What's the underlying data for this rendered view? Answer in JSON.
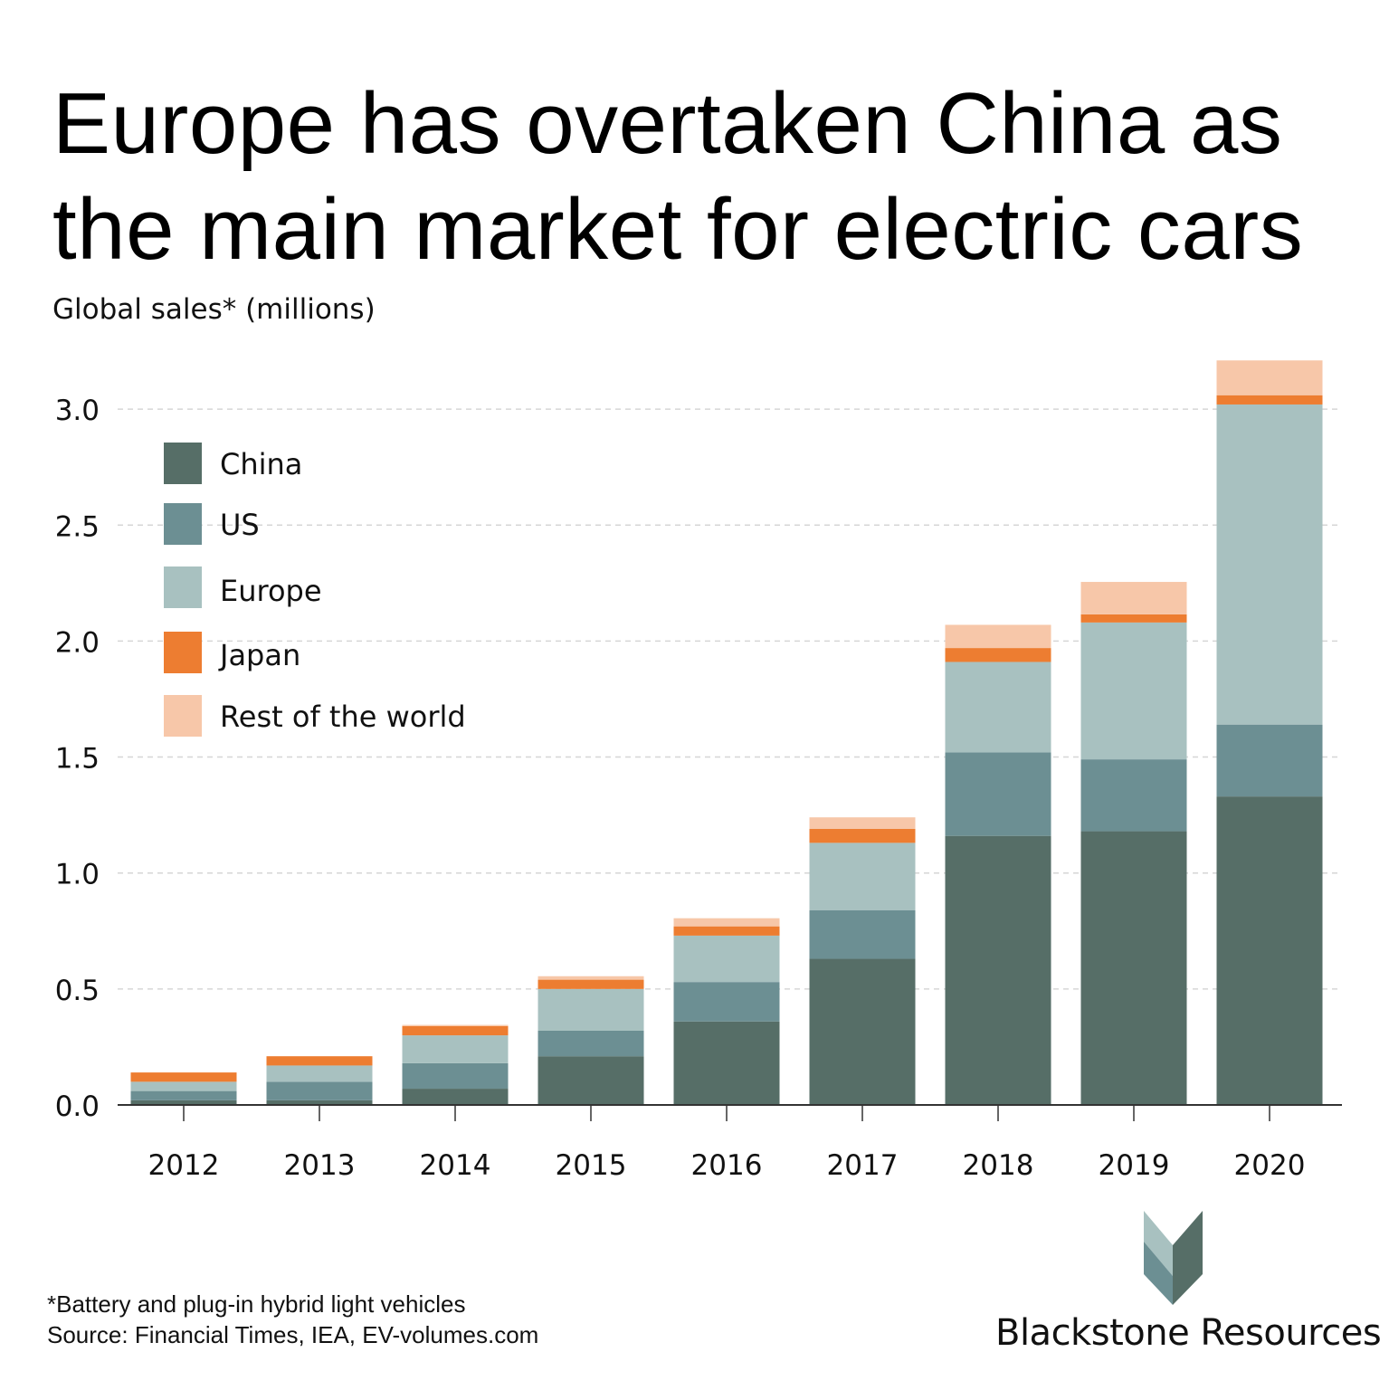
{
  "title_line1": "Europe has overtaken China as",
  "title_line2": "the main market for electric cars",
  "subtitle": "Global sales* (millions)",
  "footnote": "*Battery and plug-in hybrid light vehicles",
  "source": "Source: Financial Times, IEA, EV-volumes.com",
  "brand": "Blackstone Resources",
  "chart_data": {
    "type": "bar",
    "stacked": true,
    "title": "Europe has overtaken China as the main market for electric cars",
    "ylabel": "Global sales* (millions)",
    "xlabel": "",
    "ylim": [
      0,
      3.2
    ],
    "yticks": [
      "0.0",
      "0.5",
      "1.0",
      "1.5",
      "2.0",
      "2.5",
      "3.0"
    ],
    "grid": true,
    "legend_position": "top-left",
    "categories": [
      "2012",
      "2013",
      "2014",
      "2015",
      "2016",
      "2017",
      "2018",
      "2019",
      "2020"
    ],
    "series": [
      {
        "name": "China",
        "color": "#566e67",
        "values": [
          0.02,
          0.02,
          0.07,
          0.21,
          0.36,
          0.63,
          1.16,
          1.18,
          1.33
        ]
      },
      {
        "name": "US",
        "color": "#6c8f93",
        "values": [
          0.04,
          0.08,
          0.11,
          0.11,
          0.17,
          0.21,
          0.36,
          0.31,
          0.31
        ]
      },
      {
        "name": "Europe",
        "color": "#a8c1c0",
        "values": [
          0.04,
          0.07,
          0.12,
          0.18,
          0.2,
          0.29,
          0.39,
          0.59,
          1.38
        ]
      },
      {
        "name": "Japan",
        "color": "#ed7d31",
        "values": [
          0.04,
          0.04,
          0.04,
          0.04,
          0.04,
          0.06,
          0.06,
          0.035,
          0.04
        ]
      },
      {
        "name": "Rest of the world",
        "color": "#f7c7a9",
        "values": [
          0.0,
          0.0,
          0.005,
          0.015,
          0.035,
          0.05,
          0.1,
          0.14,
          0.15
        ]
      }
    ]
  }
}
